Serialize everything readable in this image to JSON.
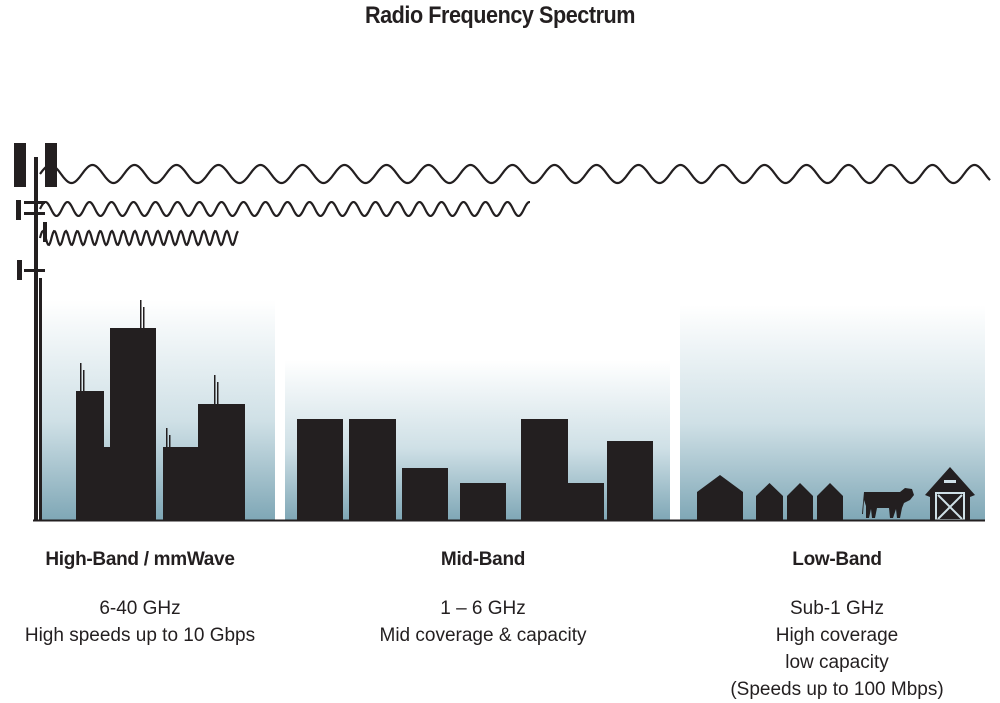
{
  "title": "Radio Frequency Spectrum",
  "colors": {
    "ink": "#231f20",
    "sky_bottom": "#7fa7b6",
    "sky_top": "#ffffff"
  },
  "bands": [
    {
      "name": "High-Band / mmWave",
      "lines": [
        "6-40 GHz",
        "High speeds up to 10 Gbps"
      ]
    },
    {
      "name": "Mid-Band",
      "lines": [
        "1 – 6 GHz",
        "Mid coverage & capacity"
      ]
    },
    {
      "name": "Low-Band",
      "lines": [
        "Sub-1 GHz",
        "High coverage",
        "low capacity",
        "(Speeds up to 100 Mbps)"
      ]
    }
  ],
  "icons": [
    "cell-tower-icon",
    "city-buildings-icon",
    "houses-icon",
    "cow-icon",
    "barn-icon",
    "radio-wave-icon"
  ]
}
